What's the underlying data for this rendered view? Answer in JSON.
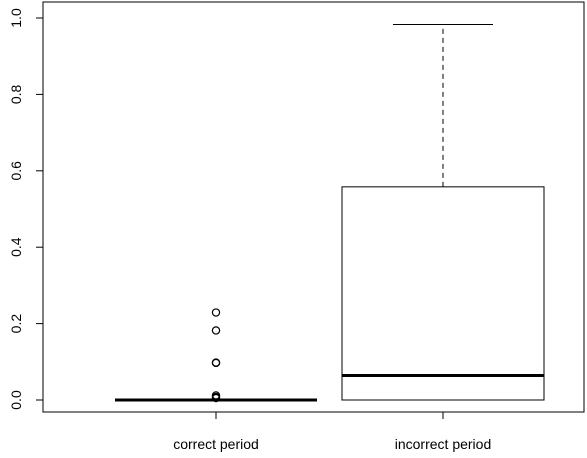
{
  "chart_data": {
    "type": "boxplot",
    "title": "",
    "xlabel": "",
    "ylabel": "",
    "categories": [
      "correct period",
      "incorrect period"
    ],
    "ylim": [
      0,
      1
    ],
    "yticks": [
      "0.0",
      "0.2",
      "0.4",
      "0.6",
      "0.8",
      "1.0"
    ],
    "ytick_values": [
      0,
      0.2,
      0.4,
      0.6,
      0.8,
      1.0
    ],
    "grid": false,
    "boxes": [
      {
        "category": "correct period",
        "min": 0,
        "q1": 0,
        "median": 0,
        "q3": 0,
        "max": 0,
        "outliers": [
          0.229,
          0.182,
          0.098,
          0.097,
          0.012,
          0.008,
          0.005
        ]
      },
      {
        "category": "incorrect period",
        "min": 0,
        "q1": 0,
        "median": 0.064,
        "q3": 0.558,
        "max": 0.983,
        "outliers": []
      }
    ]
  }
}
